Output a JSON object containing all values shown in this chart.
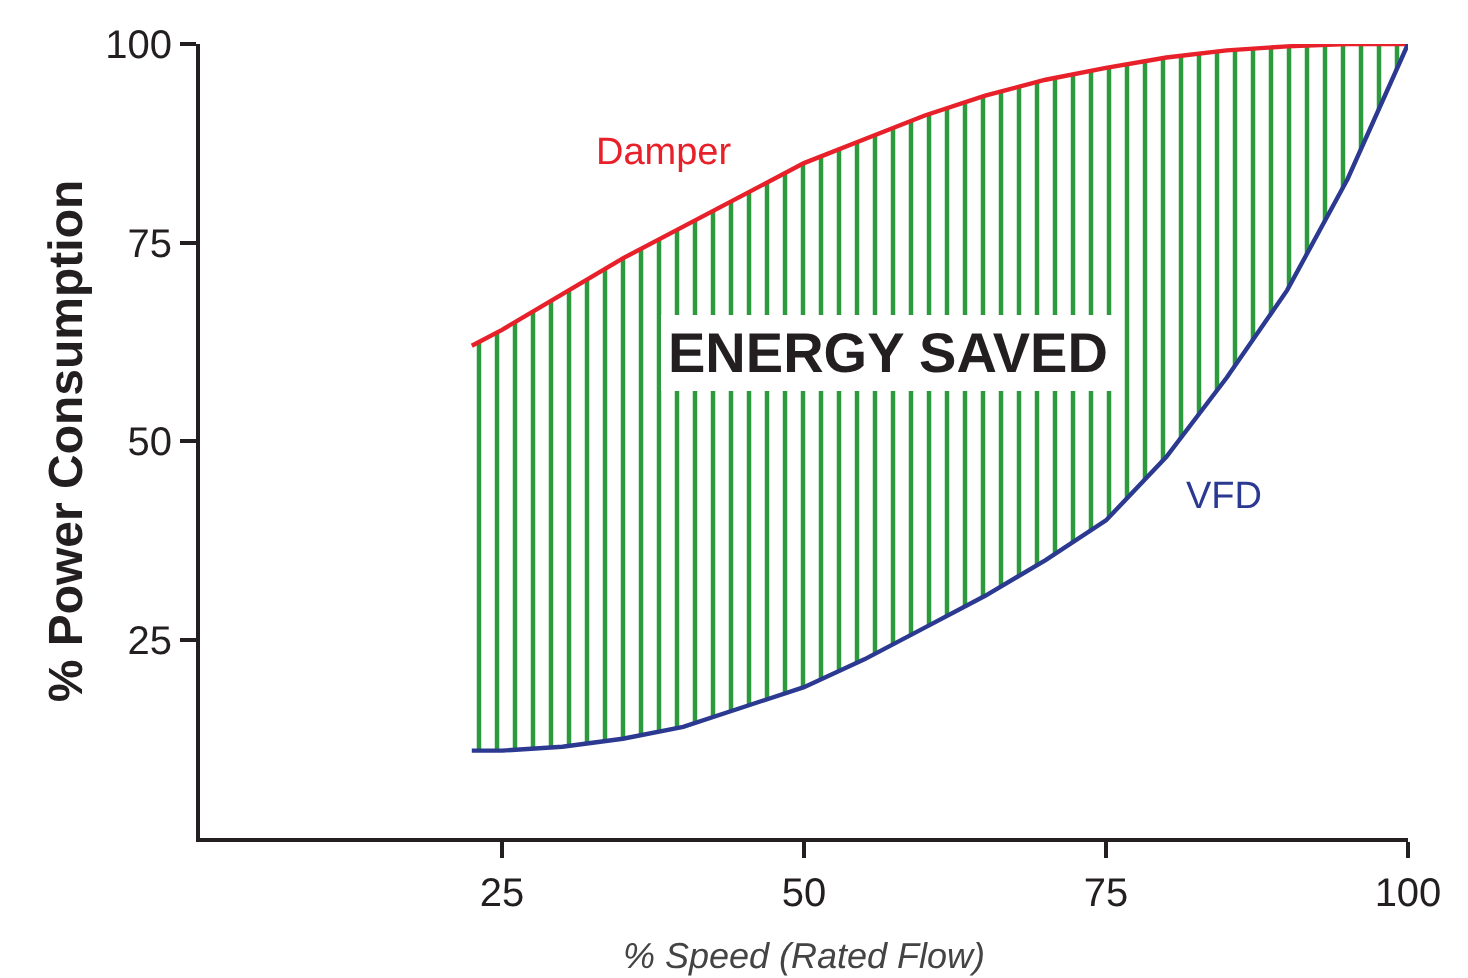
{
  "chart_data": {
    "type": "line",
    "xlabel": "% Speed (Rated Flow)",
    "ylabel": "% Power Consumption",
    "x": [
      22.5,
      25,
      30,
      35,
      40,
      45,
      50,
      55,
      60,
      65,
      70,
      75,
      80,
      85,
      90,
      95,
      100
    ],
    "series": [
      {
        "name": "Damper",
        "color": "#e8202a",
        "values": [
          62,
          64,
          68.5,
          73,
          77,
          81,
          85,
          88,
          91,
          93.5,
          95.5,
          97,
          98.3,
          99.2,
          99.7,
          100,
          100
        ],
        "lower": [
          11,
          11,
          11.5,
          12.5,
          14,
          16.5,
          19,
          22.5,
          26.5,
          30.5,
          35,
          40,
          48,
          58,
          69,
          83,
          100
        ],
        "upper": [
          62,
          64,
          68.5,
          73,
          77,
          81,
          85,
          88,
          91,
          93.5,
          95.5,
          97,
          98.3,
          99.2,
          99.7,
          100,
          100
        ]
      },
      {
        "name": "VFD",
        "color": "#2b3990",
        "values": [
          11,
          11,
          11.5,
          12.5,
          14,
          16.5,
          19,
          22.5,
          26.5,
          30.5,
          35,
          40,
          48,
          58,
          69,
          83,
          100
        ]
      }
    ],
    "annotations": [
      "ENERGY SAVED"
    ],
    "xlim": [
      0,
      100
    ],
    "xticks": [
      25,
      50,
      75,
      100
    ],
    "ylim": [
      0,
      100
    ],
    "yticks": [
      25,
      50,
      75,
      100
    ],
    "grid": false,
    "legend": false,
    "marker": "none",
    "line_style": "solid"
  }
}
